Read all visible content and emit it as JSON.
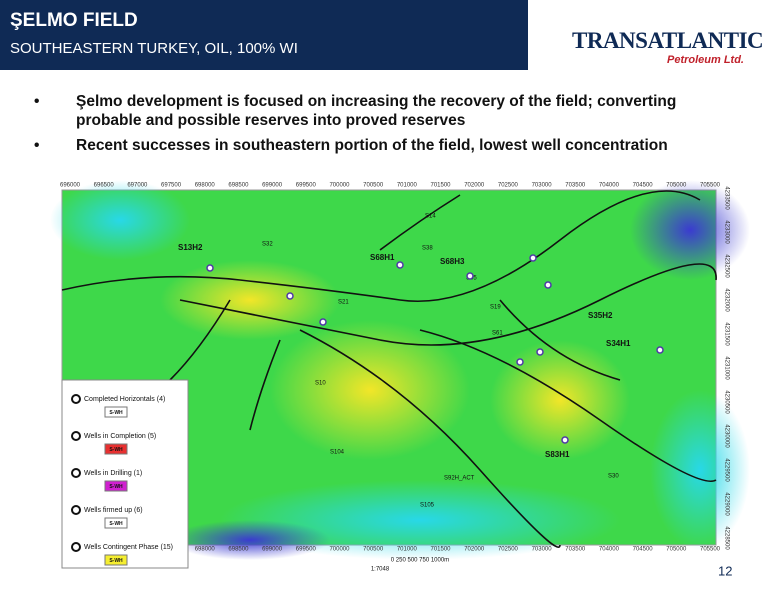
{
  "header": {
    "title": "ŞELMO FIELD",
    "subtitle": "SOUTHEASTERN TURKEY, OIL, 100% WI"
  },
  "logo": {
    "name": "TRANSATLANTIC",
    "tagline": "Petroleum Ltd."
  },
  "bullets": [
    "Şelmo development is focused on increasing the recovery of the field; converting probable and possible reserves into proved reserves",
    "Recent successes in southeastern portion of the field, lowest well concentration"
  ],
  "map": {
    "x_labels": [
      696000,
      696500,
      697000,
      697500,
      698000,
      698500,
      699000,
      699500,
      700000,
      700500,
      701000,
      701500,
      702000,
      702500,
      703000,
      703500,
      704000,
      704500,
      705000,
      705500
    ],
    "y_labels": [
      4233500,
      4233000,
      4232500,
      4232000,
      4231500,
      4231000,
      4230500,
      4230000,
      4229500,
      4229000,
      4228500
    ],
    "well_labels": [
      "S13H2",
      "S68H1",
      "S68H3",
      "S35H2",
      "S34H1",
      "S83H1",
      "S14",
      "S32",
      "S38",
      "S55",
      "S21",
      "S61",
      "S10",
      "S104",
      "S105",
      "S30",
      "S19",
      "S92H_ACT"
    ],
    "scale": "0   250   500   750   1000m",
    "ratio": "1:7048"
  },
  "legend": [
    {
      "label": "Completed Horizontals (4)",
      "chip": "S-WH"
    },
    {
      "label": "Wells in Completion (5)",
      "chip": "S-WH"
    },
    {
      "label": "Wells in Drilling (1)",
      "chip": "S-WH"
    },
    {
      "label": "Wells firmed up (6)",
      "chip": "S-WH"
    },
    {
      "label": "Wells Contingent Phase (15)",
      "chip": "S-WH"
    }
  ],
  "page_number": "12"
}
